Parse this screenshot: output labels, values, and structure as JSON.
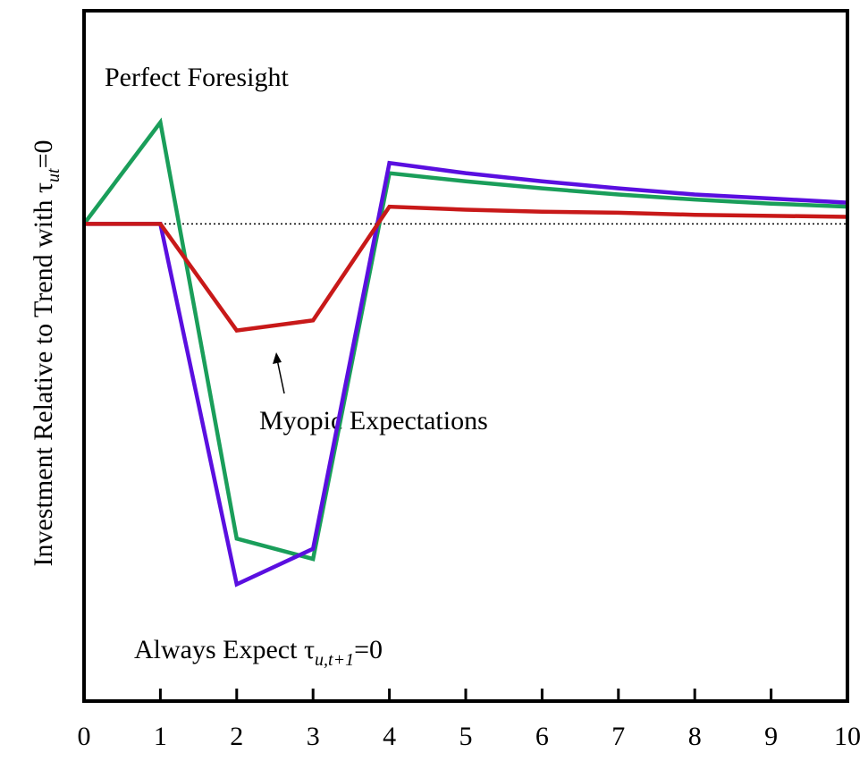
{
  "chart_data": {
    "type": "line",
    "title": "",
    "xlabel": "",
    "ylabel": {
      "main": "Investment Relative to Trend with τ",
      "sub": "ut",
      "suffix": "=0"
    },
    "x": [
      0,
      1,
      2,
      3,
      4,
      5,
      6,
      7,
      8,
      9,
      10
    ],
    "xticks": [
      "0",
      "1",
      "2",
      "3",
      "4",
      "5",
      "6",
      "7",
      "8",
      "9",
      "10"
    ],
    "xlim": [
      0,
      10
    ],
    "ylim": [
      -4.7,
      2.1
    ],
    "y_tick_labels_shown": false,
    "baseline": {
      "y": 0,
      "style": "dotted"
    },
    "grid": false,
    "legend": "none (series labeled by annotations)",
    "series": [
      {
        "key": "perfect_foresight",
        "color": "#1a9e5a",
        "values": [
          0,
          1.0,
          -3.1,
          -3.3,
          0.5,
          0.42,
          0.35,
          0.29,
          0.24,
          0.2,
          0.17
        ]
      },
      {
        "key": "always_expect_zero",
        "color": "#5a0fe0",
        "values": [
          0,
          0,
          -3.55,
          -3.2,
          0.6,
          0.5,
          0.42,
          0.35,
          0.29,
          0.25,
          0.21
        ]
      },
      {
        "key": "myopic",
        "color": "#c81919",
        "values": [
          0,
          0,
          -1.05,
          -0.95,
          0.17,
          0.14,
          0.12,
          0.11,
          0.09,
          0.08,
          0.07
        ]
      }
    ],
    "annotations": {
      "perfect_foresight": {
        "text": "Perfect Foresight"
      },
      "myopic": {
        "text": "Myopic Expectations"
      },
      "always_expect": {
        "text_main": "Always Expect τ",
        "text_sub": "u,t+1",
        "text_suffix": "=0"
      }
    }
  }
}
